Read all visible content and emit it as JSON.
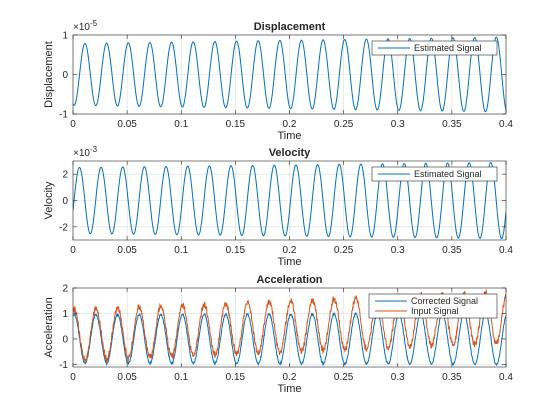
{
  "chart_data": [
    {
      "type": "line",
      "title": "Displacement",
      "xlabel": "Time",
      "ylabel": "Displacement",
      "xlim": [
        0,
        0.4
      ],
      "ylim": [
        -1,
        1
      ],
      "y_exponent_label": "×10",
      "y_exponent": "-5",
      "xticks": [
        "0",
        "0.05",
        "0.1",
        "0.15",
        "0.2",
        "0.25",
        "0.3",
        "0.35",
        "0.4"
      ],
      "yticks": [
        "-1",
        "0",
        "1"
      ],
      "grid": true,
      "legend_location": "northeast",
      "series": [
        {
          "name": "Estimated Signal",
          "color": "#0072BD",
          "model": "sine",
          "frequency_hz": 50,
          "phase": -1.9,
          "amplitude_start": 0.78,
          "amplitude_end": 0.95,
          "offset": 0,
          "noise": 0
        }
      ]
    },
    {
      "type": "line",
      "title": "Velocity",
      "xlabel": "Time",
      "ylabel": "Velocity",
      "xlim": [
        0,
        0.4
      ],
      "ylim": [
        -3,
        3
      ],
      "y_exponent_label": "×10",
      "y_exponent": "-3",
      "xticks": [
        "0",
        "0.05",
        "0.1",
        "0.15",
        "0.2",
        "0.25",
        "0.3",
        "0.35",
        "0.4"
      ],
      "yticks": [
        "-2",
        "0",
        "2"
      ],
      "grid": true,
      "legend_location": "northeast",
      "series": [
        {
          "name": "Estimated Signal",
          "color": "#0072BD",
          "model": "sine",
          "frequency_hz": 50,
          "phase": -0.3,
          "amplitude_start": 2.5,
          "amplitude_end": 2.9,
          "offset": 0,
          "noise": 0
        }
      ]
    },
    {
      "type": "line",
      "title": "Acceleration",
      "xlabel": "Time",
      "ylabel": "Acceleration",
      "xlim": [
        0,
        0.4
      ],
      "ylim": [
        -1.1,
        2
      ],
      "xticks": [
        "0",
        "0.05",
        "0.1",
        "0.15",
        "0.2",
        "0.25",
        "0.3",
        "0.35",
        "0.4"
      ],
      "yticks": [
        "-1",
        "0",
        "1",
        "2"
      ],
      "grid": true,
      "legend_location": "northeast",
      "series": [
        {
          "name": "Corrected Signal",
          "color": "#0072BD",
          "model": "sine",
          "frequency_hz": 50,
          "phase": 1.2,
          "amplitude_start": 0.95,
          "amplitude_end": 1.0,
          "offset": 0,
          "noise": 0.03
        },
        {
          "name": "Input Signal",
          "color": "#D95319",
          "model": "sine",
          "frequency_hz": 50,
          "phase": 1.2,
          "amplitude_start": 1.0,
          "amplitude_end": 1.0,
          "offset_start": 0.15,
          "offset_end": 0.85,
          "noise": 0.09
        }
      ]
    }
  ]
}
